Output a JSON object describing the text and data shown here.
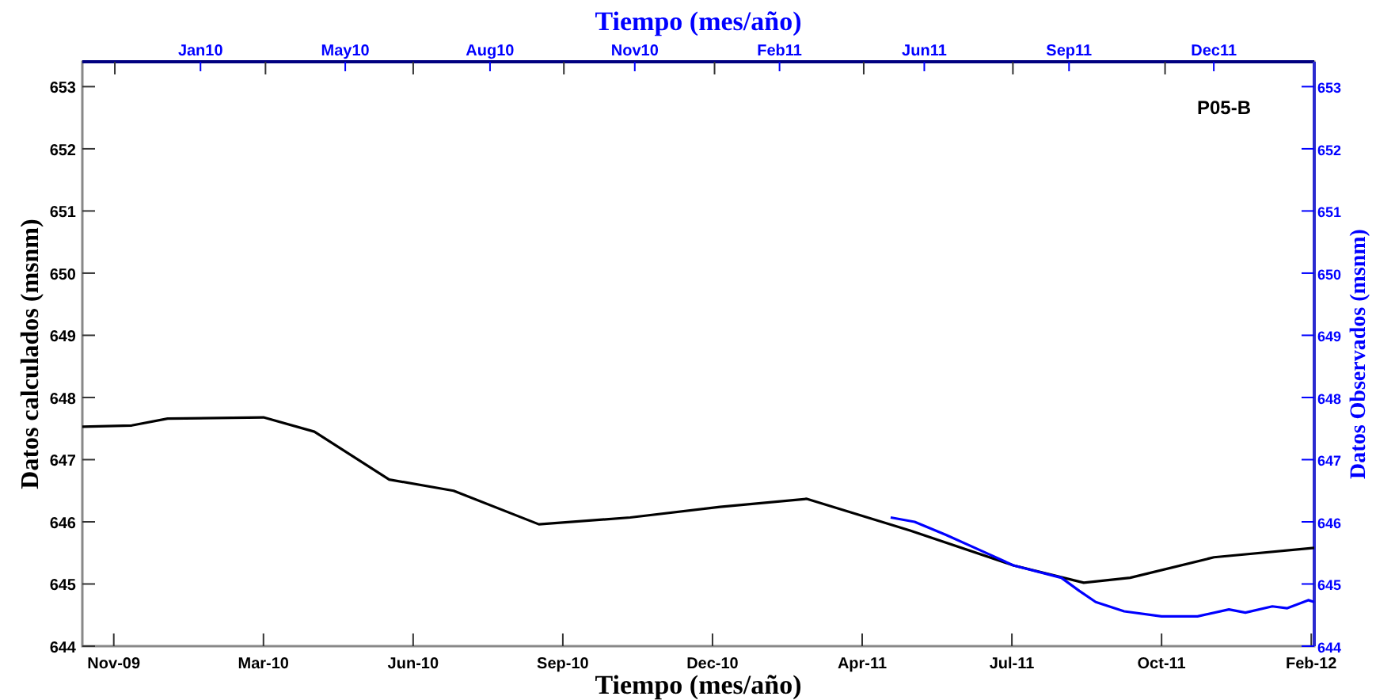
{
  "chart_data": {
    "type": "line",
    "xlabel": "Tiempo (mes/año)",
    "x2label": "Tiempo (mes/año)",
    "ylabel": "Datos calculados (msnm)",
    "y2label": "Datos Observados (msnm)",
    "annotations": [
      "P05-B"
    ],
    "xlim": [
      "2009-11-04",
      "2012-02-05"
    ],
    "x2lim": [
      "2009-11-09",
      "2012-02-21"
    ],
    "xticks": [
      {
        "value": "2009-11-25",
        "label": "Nov-09"
      },
      {
        "value": "2010-03-05",
        "label": "Mar-10"
      },
      {
        "value": "2010-06-13",
        "label": "Jun-10"
      },
      {
        "value": "2010-09-21",
        "label": "Sep-10"
      },
      {
        "value": "2010-12-30",
        "label": "Dec-10"
      },
      {
        "value": "2011-04-09",
        "label": "Apr-11"
      },
      {
        "value": "2011-07-18",
        "label": "Jul-11"
      },
      {
        "value": "2011-10-26",
        "label": "Oct-11"
      },
      {
        "value": "2012-02-03",
        "label": "Feb-12"
      }
    ],
    "x2ticks": [
      {
        "value": "2009-12-01",
        "label": null
      },
      {
        "value": "2010-01-28",
        "label": "Jan10"
      },
      {
        "value": "2010-03-13",
        "label": null
      },
      {
        "value": "2010-05-06",
        "label": "May10"
      },
      {
        "value": "2010-06-21",
        "label": null
      },
      {
        "value": "2010-08-12",
        "label": "Aug10"
      },
      {
        "value": "2010-10-01",
        "label": null
      },
      {
        "value": "2010-11-18",
        "label": "Nov10"
      },
      {
        "value": "2011-01-11",
        "label": null
      },
      {
        "value": "2011-02-24",
        "label": "Feb11"
      },
      {
        "value": "2011-04-22",
        "label": null
      },
      {
        "value": "2011-06-02",
        "label": "Jun11"
      },
      {
        "value": "2011-08-01",
        "label": null
      },
      {
        "value": "2011-09-08",
        "label": "Sep11"
      },
      {
        "value": "2011-11-12",
        "label": null
      },
      {
        "value": "2011-12-15",
        "label": "Dec11"
      }
    ],
    "ylim": [
      644,
      653.4
    ],
    "yticks": [
      644,
      645,
      646,
      647,
      648,
      649,
      650,
      651,
      652,
      653
    ],
    "y2lim": [
      644,
      653.4
    ],
    "y2ticks": [
      644,
      645,
      646,
      647,
      648,
      649,
      650,
      651,
      652,
      653
    ],
    "grid": false,
    "marker": "none",
    "line_style": "solid",
    "series": [
      {
        "color": "#000000",
        "x": [
          "2009-11-04",
          "2009-12-07",
          "2009-12-31",
          "2010-03-05",
          "2010-04-08",
          "2010-05-28",
          "2010-07-10",
          "2010-09-05",
          "2010-11-05",
          "2011-01-04",
          "2011-03-03",
          "2011-05-11",
          "2011-07-19",
          "2011-09-04",
          "2011-10-05",
          "2011-11-30",
          "2012-02-05"
        ],
        "values": [
          647.53,
          647.55,
          647.66,
          647.68,
          647.45,
          646.68,
          646.5,
          645.96,
          646.07,
          646.24,
          646.37,
          645.86,
          645.3,
          645.02,
          645.1,
          645.43,
          645.58
        ]
      },
      {
        "color": "#0000ff",
        "axis": "y2",
        "x": [
          "2011-04-28",
          "2011-05-14",
          "2011-06-04",
          "2011-06-28",
          "2011-07-19",
          "2011-08-20",
          "2011-09-01",
          "2011-09-12",
          "2011-10-01",
          "2011-10-26",
          "2011-11-19",
          "2011-12-10",
          "2011-12-21",
          "2012-01-08",
          "2012-01-18",
          "2012-02-01",
          "2012-02-05"
        ],
        "values": [
          646.07,
          646.0,
          645.79,
          645.53,
          645.3,
          645.1,
          644.89,
          644.71,
          644.56,
          644.48,
          644.48,
          644.59,
          644.54,
          644.64,
          644.61,
          644.74,
          644.71
        ]
      }
    ]
  }
}
